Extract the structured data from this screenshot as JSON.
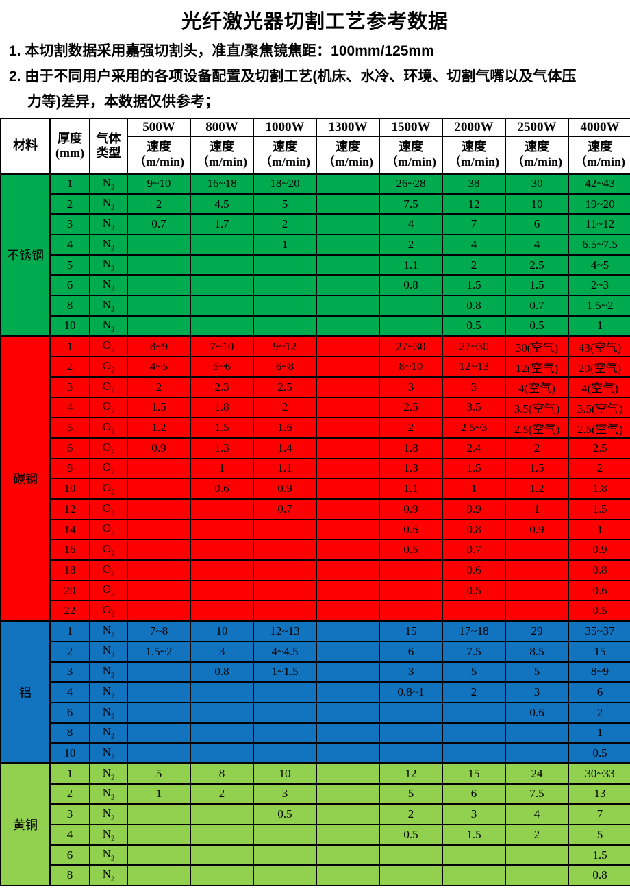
{
  "title": "光纤激光器切割工艺参考数据",
  "notes": [
    {
      "lines": [
        "1. 本切割数据采用嘉强切割头，准直/聚焦镜焦距：100mm/125mm"
      ]
    },
    {
      "lines": [
        "2. 由于不同用户采用的各项设备配置及切割工艺(机床、水冷、环境、切割气嘴以及气体压",
        "力等)差异，本数据仅供参考；"
      ]
    }
  ],
  "table": {
    "header": {
      "material": "材料",
      "thickness": [
        "厚度",
        "(mm)"
      ],
      "gas": [
        "气体",
        "类型"
      ],
      "powers": [
        "500W",
        "800W",
        "1000W",
        "1300W",
        "1500W",
        "2000W",
        "2500W",
        "4000W"
      ],
      "speed": [
        "速度",
        "（m/min)"
      ]
    },
    "colors": {
      "stainless": "#00AB50",
      "carbon": "#FE0000",
      "aluminum": "#1274BE",
      "brass": "#92D050",
      "border": "#000000"
    },
    "sections": [
      {
        "material": "不锈钢",
        "color_key": "stainless",
        "rows": [
          {
            "t": "1",
            "gas": "N2",
            "v": [
              "9~10",
              "16~18",
              "18~20",
              "",
              "26~28",
              "38",
              "30",
              "42~43"
            ]
          },
          {
            "t": "2",
            "gas": "N2",
            "v": [
              "2",
              "4.5",
              "5",
              "",
              "7.5",
              "12",
              "10",
              "19~20"
            ]
          },
          {
            "t": "3",
            "gas": "N2",
            "v": [
              "0.7",
              "1.7",
              "2",
              "",
              "4",
              "7",
              "6",
              "11~12"
            ]
          },
          {
            "t": "4",
            "gas": "N2",
            "v": [
              "",
              "",
              "1",
              "",
              "2",
              "4",
              "4",
              "6.5~7.5"
            ]
          },
          {
            "t": "5",
            "gas": "N2",
            "v": [
              "",
              "",
              "",
              "",
              "1.1",
              "2",
              "2.5",
              "4~5"
            ]
          },
          {
            "t": "6",
            "gas": "N2",
            "v": [
              "",
              "",
              "",
              "",
              "0.8",
              "1.5",
              "1.5",
              "2~3"
            ]
          },
          {
            "t": "8",
            "gas": "N2",
            "v": [
              "",
              "",
              "",
              "",
              "",
              "0.8",
              "0.7",
              "1.5~2"
            ]
          },
          {
            "t": "10",
            "gas": "N2",
            "v": [
              "",
              "",
              "",
              "",
              "",
              "0.5",
              "0.5",
              "1"
            ]
          }
        ]
      },
      {
        "material": "碳钢",
        "color_key": "carbon",
        "rows": [
          {
            "t": "1",
            "gas": "O2",
            "v": [
              "8~9",
              "7~10",
              "9~12",
              "",
              "27~30",
              "27~30",
              "30(空气)",
              "43(空气)"
            ]
          },
          {
            "t": "2",
            "gas": "O2",
            "v": [
              "4~5",
              "5~6",
              "6~8",
              "",
              "8~10",
              "12~13",
              "12(空气)",
              "20(空气)"
            ]
          },
          {
            "t": "3",
            "gas": "O2",
            "v": [
              "2",
              "2.3",
              "2.5",
              "",
              "3",
              "3",
              "4(空气)",
              "4(空气)"
            ]
          },
          {
            "t": "4",
            "gas": "O2",
            "v": [
              "1.5",
              "1.8",
              "2",
              "",
              "2.5",
              "3.5",
              "3.5(空气)",
              "3.5(空气)"
            ]
          },
          {
            "t": "5",
            "gas": "O2",
            "v": [
              "1.2",
              "1.5",
              "1.6",
              "",
              "2",
              "2.5~3",
              "2.5(空气)",
              "2.5(空气)"
            ]
          },
          {
            "t": "6",
            "gas": "O2",
            "v": [
              "0.9",
              "1.3",
              "1.4",
              "",
              "1.8",
              "2.4",
              "2",
              "2.5"
            ]
          },
          {
            "t": "8",
            "gas": "O2",
            "v": [
              "",
              "1",
              "1.1",
              "",
              "1.3",
              "1.5",
              "1.5",
              "2"
            ]
          },
          {
            "t": "10",
            "gas": "O2",
            "v": [
              "",
              "0.6",
              "0.9",
              "",
              "1.1",
              "1",
              "1.2",
              "1.8"
            ]
          },
          {
            "t": "12",
            "gas": "O2",
            "v": [
              "",
              "",
              "0.7",
              "",
              "0.9",
              "0.9",
              "1",
              "1.5"
            ]
          },
          {
            "t": "14",
            "gas": "O2",
            "v": [
              "",
              "",
              "",
              "",
              "0.6",
              "0.8",
              "0.9",
              "1"
            ]
          },
          {
            "t": "16",
            "gas": "O2",
            "v": [
              "",
              "",
              "",
              "",
              "0.5",
              "0.7",
              "",
              "0.9"
            ]
          },
          {
            "t": "18",
            "gas": "O2",
            "v": [
              "",
              "",
              "",
              "",
              "",
              "0.6",
              "",
              "0.8"
            ]
          },
          {
            "t": "20",
            "gas": "O2",
            "v": [
              "",
              "",
              "",
              "",
              "",
              "0.5",
              "",
              "0.6"
            ]
          },
          {
            "t": "22",
            "gas": "O2",
            "v": [
              "",
              "",
              "",
              "",
              "",
              "",
              "",
              "0.5"
            ]
          }
        ]
      },
      {
        "material": "铝",
        "color_key": "aluminum",
        "rows": [
          {
            "t": "1",
            "gas": "N2",
            "v": [
              "7~8",
              "10",
              "12~13",
              "",
              "15",
              "17~18",
              "29",
              "35~37"
            ]
          },
          {
            "t": "2",
            "gas": "N2",
            "v": [
              "1.5~2",
              "3",
              "4~4.5",
              "",
              "6",
              "7.5",
              "8.5",
              "15"
            ]
          },
          {
            "t": "3",
            "gas": "N2",
            "v": [
              "",
              "0.8",
              "1~1.5",
              "",
              "3",
              "5",
              "5",
              "8~9"
            ]
          },
          {
            "t": "4",
            "gas": "N2",
            "v": [
              "",
              "",
              "",
              "",
              "0.8~1",
              "2",
              "3",
              "6"
            ]
          },
          {
            "t": "6",
            "gas": "N2",
            "v": [
              "",
              "",
              "",
              "",
              "",
              "",
              "0.6",
              "2"
            ]
          },
          {
            "t": "8",
            "gas": "N2",
            "v": [
              "",
              "",
              "",
              "",
              "",
              "",
              "",
              "1"
            ]
          },
          {
            "t": "10",
            "gas": "N2",
            "v": [
              "",
              "",
              "",
              "",
              "",
              "",
              "",
              "0.5"
            ]
          }
        ]
      },
      {
        "material": "黄铜",
        "color_key": "brass",
        "rows": [
          {
            "t": "1",
            "gas": "N2",
            "v": [
              "5",
              "8",
              "10",
              "",
              "12",
              "15",
              "24",
              "30~33"
            ]
          },
          {
            "t": "2",
            "gas": "N2",
            "v": [
              "1",
              "2",
              "3",
              "",
              "5",
              "6",
              "7.5",
              "13"
            ]
          },
          {
            "t": "3",
            "gas": "N2",
            "v": [
              "",
              "",
              "0.5",
              "",
              "2",
              "3",
              "4",
              "7"
            ]
          },
          {
            "t": "4",
            "gas": "N2",
            "v": [
              "",
              "",
              "",
              "",
              "0.5",
              "1.5",
              "2",
              "5"
            ]
          },
          {
            "t": "6",
            "gas": "N2",
            "v": [
              "",
              "",
              "",
              "",
              "",
              "",
              "",
              "1.5"
            ]
          },
          {
            "t": "8",
            "gas": "N2",
            "v": [
              "",
              "",
              "",
              "",
              "",
              "",
              "",
              "0.8"
            ]
          }
        ]
      }
    ]
  }
}
